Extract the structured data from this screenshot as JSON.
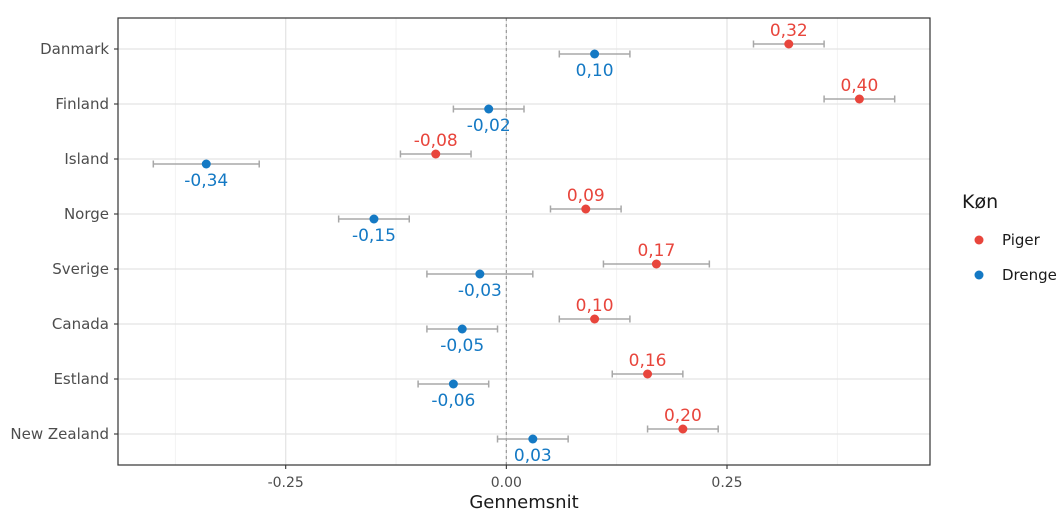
{
  "chart_data": {
    "type": "scatter",
    "categories": [
      "Danmark",
      "Finland",
      "Island",
      "Norge",
      "Sverige",
      "Canada",
      "Estland",
      "New Zealand"
    ],
    "series": [
      {
        "name": "Piger",
        "color": "#e8453c",
        "values": [
          0.32,
          0.4,
          -0.08,
          0.09,
          0.17,
          0.1,
          0.16,
          0.2
        ],
        "labels": [
          "0,32",
          "0,40",
          "-0,08",
          "0,09",
          "0,17",
          "0,10",
          "0,16",
          "0,20"
        ],
        "ci_low": [
          0.28,
          0.36,
          -0.12,
          0.05,
          0.11,
          0.06,
          0.12,
          0.16
        ],
        "ci_high": [
          0.36,
          0.44,
          -0.04,
          0.13,
          0.23,
          0.14,
          0.2,
          0.24
        ]
      },
      {
        "name": "Drenge",
        "color": "#1479c4",
        "values": [
          0.1,
          -0.02,
          -0.34,
          -0.15,
          -0.03,
          -0.05,
          -0.06,
          0.03
        ],
        "labels": [
          "0,10",
          "-0,02",
          "-0,34",
          "-0,15",
          "-0,03",
          "-0,05",
          "-0,06",
          "0,03"
        ],
        "ci_low": [
          0.06,
          -0.06,
          -0.4,
          -0.19,
          -0.09,
          -0.09,
          -0.1,
          -0.01
        ],
        "ci_high": [
          0.14,
          0.02,
          -0.28,
          -0.11,
          0.03,
          -0.01,
          -0.02,
          0.07
        ]
      }
    ],
    "xlabel": "Gennemsnit",
    "xlim": [
      -0.44,
      0.48
    ],
    "xticks": [
      -0.25,
      0.0,
      0.25
    ],
    "xtick_labels": [
      "-0.25",
      "0.00",
      "0.25"
    ],
    "reference_line": 0,
    "legend": {
      "title": "Køn",
      "position": "right"
    },
    "grid": true
  }
}
